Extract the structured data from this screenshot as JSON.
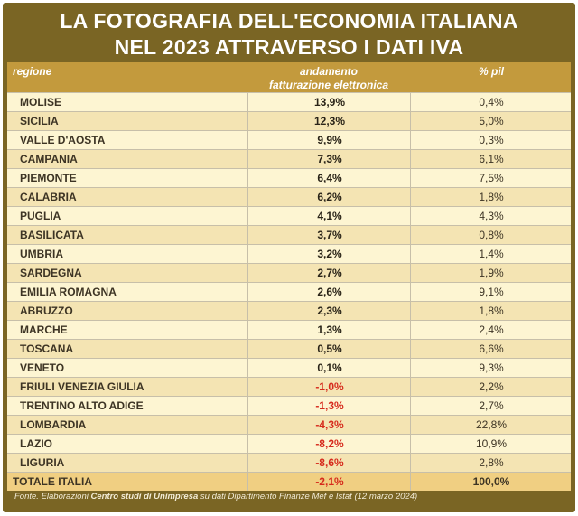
{
  "title": {
    "line1": "LA FOTOGRAFIA DELL'ECONOMIA ITALIANA",
    "line2": "NEL 2023 ATTRAVERSO I DATI IVA"
  },
  "headers": {
    "region": "regione",
    "trend_line1": "andamento",
    "trend_line2": "fatturazione elettronica",
    "gdp": "% pil"
  },
  "rows": [
    {
      "region": "MOLISE",
      "trend": "13,9%",
      "gdp": "0,4%"
    },
    {
      "region": "SICILIA",
      "trend": "12,3%",
      "gdp": "5,0%"
    },
    {
      "region": "VALLE D'AOSTA",
      "trend": "9,9%",
      "gdp": "0,3%"
    },
    {
      "region": "CAMPANIA",
      "trend": "7,3%",
      "gdp": "6,1%"
    },
    {
      "region": "PIEMONTE",
      "trend": "6,4%",
      "gdp": "7,5%"
    },
    {
      "region": "CALABRIA",
      "trend": "6,2%",
      "gdp": "1,8%"
    },
    {
      "region": "PUGLIA",
      "trend": "4,1%",
      "gdp": "4,3%"
    },
    {
      "region": "BASILICATA",
      "trend": "3,7%",
      "gdp": "0,8%"
    },
    {
      "region": "UMBRIA",
      "trend": "3,2%",
      "gdp": "1,4%"
    },
    {
      "region": "SARDEGNA",
      "trend": "2,7%",
      "gdp": "1,9%"
    },
    {
      "region": "EMILIA ROMAGNA",
      "trend": "2,6%",
      "gdp": "9,1%"
    },
    {
      "region": "ABRUZZO",
      "trend": "2,3%",
      "gdp": "1,8%"
    },
    {
      "region": "MARCHE",
      "trend": "1,3%",
      "gdp": "2,4%"
    },
    {
      "region": "TOSCANA",
      "trend": "0,5%",
      "gdp": "6,6%"
    },
    {
      "region": "VENETO",
      "trend": "0,1%",
      "gdp": "9,3%"
    },
    {
      "region": "FRIULI VENEZIA GIULIA",
      "trend": "-1,0%",
      "gdp": "2,2%"
    },
    {
      "region": "TRENTINO ALTO ADIGE",
      "trend": "-1,3%",
      "gdp": "2,7%"
    },
    {
      "region": "LOMBARDIA",
      "trend": "-4,3%",
      "gdp": "22,8%"
    },
    {
      "region": "LAZIO",
      "trend": "-8,2%",
      "gdp": "10,9%"
    },
    {
      "region": "LIGURIA",
      "trend": "-8,6%",
      "gdp": "2,8%"
    }
  ],
  "total": {
    "region": "TOTALE ITALIA",
    "trend": "-2,1%",
    "gdp": "100,0%"
  },
  "footer": {
    "prefix": "Fonte. Elaborazioni ",
    "source_bold": "Centro studi di Unimpresa",
    "suffix": " su dati Dipartimento Finanze Mef e Istat (12 marzo 2024)"
  },
  "colors": {
    "frame": "#7a6524",
    "header": "#c39a3d",
    "row_light": "#fdf5d2",
    "row_dark": "#f4e4b3",
    "total_row": "#f0cf82",
    "negative": "#d62a1c"
  }
}
